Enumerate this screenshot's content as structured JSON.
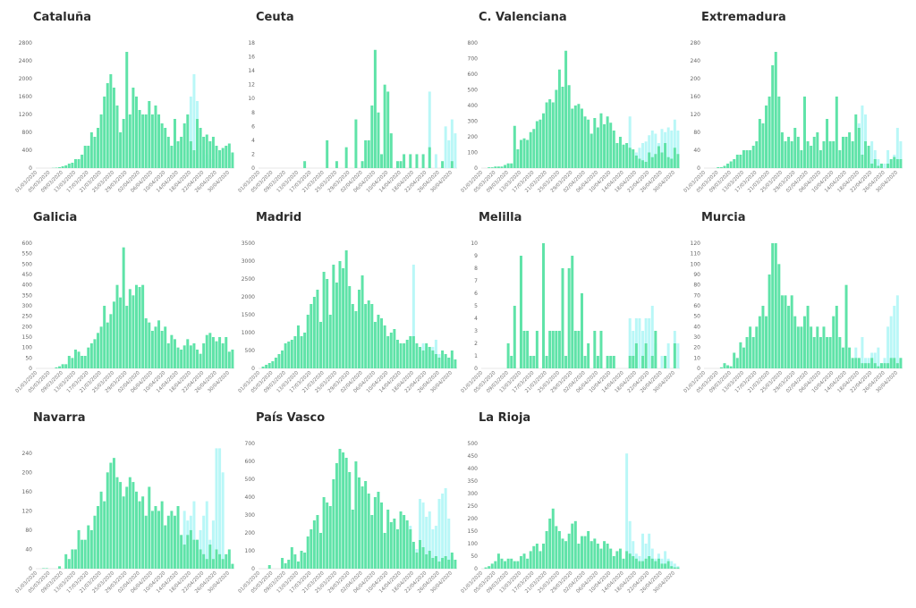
{
  "colors": {
    "confirmed": "#5fe3a8",
    "pending": "#b9f7f7",
    "axis": "#cfcfcf"
  },
  "x_dates": [
    "01/03/2020",
    "05/03/2020",
    "09/03/2020",
    "13/03/2020",
    "17/03/2020",
    "21/03/2020",
    "25/03/2020",
    "29/03/2020",
    "02/04/2020",
    "06/04/2020",
    "10/04/2020",
    "14/04/2020",
    "18/04/2020",
    "22/04/2020",
    "26/04/2020",
    "30/04/2020"
  ],
  "chart_data": [
    {
      "type": "bar",
      "title": "Cataluña",
      "ylim": [
        0,
        2800
      ],
      "yticks": [
        0,
        400,
        800,
        1200,
        1600,
        2000,
        2400,
        2800
      ],
      "confirmed": [
        0,
        0,
        0,
        0,
        0,
        5,
        10,
        20,
        40,
        60,
        100,
        120,
        200,
        200,
        300,
        500,
        500,
        800,
        700,
        900,
        1200,
        1600,
        1900,
        2100,
        1800,
        1400,
        800,
        1100,
        2600,
        1200,
        1800,
        1600,
        1300,
        1200,
        1200,
        1500,
        1200,
        1400,
        1200,
        1000,
        900,
        700,
        500,
        1100,
        600,
        700,
        1000,
        1200,
        600,
        400,
        1100,
        900,
        700,
        750,
        600,
        700,
        500,
        400,
        450,
        500,
        550,
        350
      ],
      "pending": [
        0,
        0,
        0,
        0,
        0,
        0,
        0,
        0,
        0,
        0,
        0,
        0,
        0,
        0,
        0,
        0,
        0,
        0,
        0,
        0,
        0,
        0,
        0,
        0,
        0,
        0,
        0,
        0,
        0,
        0,
        0,
        0,
        0,
        0,
        0,
        0,
        0,
        0,
        0,
        0,
        0,
        0,
        0,
        0,
        0,
        0,
        0,
        0,
        1600,
        2100,
        1500,
        500,
        400,
        300,
        200,
        200,
        150,
        100,
        0,
        0,
        0,
        0
      ]
    },
    {
      "type": "bar",
      "title": "Ceuta",
      "ylim": [
        0,
        18
      ],
      "yticks": [
        0,
        2,
        4,
        6,
        8,
        10,
        12,
        14,
        16,
        18
      ],
      "confirmed": [
        0,
        0,
        0,
        0,
        0,
        0,
        0,
        0,
        0,
        0,
        0,
        0,
        0,
        0,
        1,
        0,
        0,
        0,
        0,
        0,
        0,
        4,
        0,
        0,
        1,
        0,
        0,
        3,
        0,
        0,
        7,
        0,
        1,
        4,
        4,
        9,
        17,
        8,
        2,
        12,
        11,
        5,
        0,
        1,
        1,
        2,
        0,
        2,
        0,
        2,
        0,
        2,
        0,
        3,
        0,
        0,
        0,
        1,
        0,
        0,
        1,
        0
      ],
      "pending": [
        0,
        0,
        0,
        0,
        0,
        0,
        0,
        0,
        0,
        0,
        0,
        0,
        0,
        0,
        0,
        0,
        0,
        0,
        0,
        0,
        0,
        0,
        0,
        0,
        0,
        0,
        0,
        0,
        0,
        0,
        0,
        0,
        0,
        0,
        0,
        0,
        0,
        0,
        0,
        0,
        0,
        0,
        0,
        0,
        0,
        0,
        0,
        0,
        0,
        0,
        0,
        0,
        0,
        11,
        0,
        2,
        0,
        0,
        6,
        4,
        7,
        5
      ]
    },
    {
      "type": "bar",
      "title": "C. Valenciana",
      "ylim": [
        0,
        800
      ],
      "yticks": [
        0,
        100,
        200,
        300,
        400,
        500,
        600,
        700,
        800
      ],
      "confirmed": [
        0,
        0,
        5,
        5,
        10,
        10,
        10,
        20,
        30,
        30,
        270,
        120,
        180,
        190,
        180,
        230,
        250,
        300,
        310,
        350,
        420,
        440,
        420,
        500,
        630,
        520,
        750,
        530,
        380,
        400,
        410,
        380,
        330,
        310,
        220,
        320,
        260,
        350,
        280,
        330,
        290,
        240,
        160,
        200,
        150,
        160,
        130,
        120,
        80,
        60,
        50,
        40,
        100,
        70,
        90,
        140,
        100,
        160,
        70,
        60,
        130,
        90
      ],
      "pending": [
        0,
        0,
        0,
        0,
        0,
        0,
        0,
        0,
        0,
        0,
        0,
        0,
        0,
        0,
        0,
        0,
        0,
        0,
        0,
        0,
        0,
        0,
        0,
        0,
        0,
        0,
        0,
        0,
        0,
        0,
        0,
        0,
        0,
        0,
        0,
        0,
        0,
        0,
        0,
        0,
        0,
        0,
        0,
        0,
        0,
        0,
        330,
        0,
        100,
        130,
        160,
        170,
        210,
        240,
        220,
        160,
        250,
        230,
        260,
        240,
        310,
        240
      ]
    },
    {
      "type": "bar",
      "title": "Extremadura",
      "ylim": [
        0,
        280
      ],
      "yticks": [
        0,
        40,
        80,
        120,
        160,
        200,
        240,
        280
      ],
      "confirmed": [
        0,
        0,
        0,
        0,
        2,
        2,
        5,
        10,
        15,
        20,
        30,
        30,
        40,
        40,
        40,
        50,
        60,
        110,
        100,
        140,
        160,
        230,
        260,
        160,
        80,
        60,
        70,
        60,
        90,
        70,
        40,
        160,
        60,
        50,
        70,
        80,
        40,
        60,
        110,
        60,
        60,
        160,
        40,
        70,
        70,
        80,
        60,
        120,
        90,
        30,
        60,
        50,
        10,
        20,
        5,
        10,
        0,
        10,
        20,
        25,
        20,
        20
      ],
      "pending": [
        0,
        0,
        0,
        0,
        0,
        0,
        0,
        0,
        0,
        0,
        0,
        0,
        0,
        0,
        0,
        0,
        0,
        0,
        0,
        0,
        0,
        0,
        0,
        0,
        0,
        0,
        0,
        0,
        0,
        0,
        0,
        0,
        0,
        0,
        0,
        0,
        0,
        0,
        0,
        0,
        0,
        0,
        0,
        0,
        0,
        0,
        0,
        0,
        100,
        140,
        120,
        40,
        60,
        40,
        20,
        10,
        10,
        40,
        10,
        30,
        90,
        60
      ]
    },
    {
      "type": "bar",
      "title": "Galicia",
      "ylim": [
        0,
        600
      ],
      "yticks": [
        0,
        50,
        100,
        150,
        200,
        250,
        300,
        350,
        400,
        450,
        500,
        550,
        600
      ],
      "confirmed": [
        0,
        0,
        0,
        0,
        0,
        0,
        5,
        10,
        20,
        20,
        60,
        50,
        90,
        80,
        60,
        60,
        100,
        120,
        140,
        170,
        200,
        300,
        220,
        260,
        320,
        400,
        340,
        580,
        300,
        380,
        350,
        400,
        390,
        400,
        240,
        220,
        180,
        200,
        230,
        180,
        200,
        120,
        160,
        140,
        100,
        90,
        110,
        140,
        110,
        120,
        90,
        70,
        120,
        160,
        170,
        150,
        130,
        150,
        120,
        150,
        80,
        90
      ],
      "pending": [
        0,
        0,
        0,
        0,
        0,
        0,
        0,
        0,
        0,
        0,
        0,
        0,
        0,
        0,
        0,
        0,
        0,
        0,
        0,
        0,
        0,
        0,
        0,
        0,
        0,
        0,
        0,
        0,
        0,
        0,
        0,
        0,
        0,
        0,
        0,
        0,
        0,
        0,
        0,
        0,
        0,
        0,
        0,
        0,
        0,
        0,
        0,
        0,
        0,
        0,
        0,
        0,
        0,
        0,
        0,
        0,
        0,
        0,
        0,
        0,
        0,
        0
      ]
    },
    {
      "type": "bar",
      "title": "Madrid",
      "ylim": [
        0,
        3500
      ],
      "yticks": [
        0,
        500,
        1000,
        1500,
        2000,
        2500,
        3000,
        3500
      ],
      "confirmed": [
        0,
        50,
        100,
        150,
        200,
        300,
        400,
        500,
        700,
        750,
        800,
        900,
        1200,
        900,
        1000,
        1500,
        1800,
        2000,
        2200,
        1300,
        2700,
        2500,
        1500,
        2900,
        2400,
        3000,
        2800,
        3300,
        2300,
        1800,
        1600,
        2200,
        2600,
        1800,
        1900,
        1800,
        1300,
        1500,
        1400,
        1200,
        900,
        1000,
        1100,
        800,
        700,
        700,
        800,
        900,
        900,
        700,
        600,
        500,
        700,
        600,
        500,
        400,
        300,
        500,
        400,
        300,
        500,
        250
      ],
      "pending": [
        0,
        0,
        0,
        0,
        0,
        0,
        0,
        0,
        0,
        0,
        0,
        0,
        0,
        0,
        0,
        0,
        0,
        0,
        0,
        0,
        0,
        0,
        0,
        0,
        0,
        0,
        0,
        0,
        0,
        0,
        0,
        0,
        0,
        0,
        0,
        0,
        0,
        0,
        0,
        0,
        0,
        0,
        0,
        0,
        0,
        0,
        0,
        0,
        2900,
        500,
        300,
        700,
        600,
        500,
        600,
        800,
        400,
        300,
        200,
        300,
        100,
        50
      ]
    },
    {
      "type": "bar",
      "title": "Melilla",
      "ylim": [
        0,
        10
      ],
      "yticks": [
        0,
        1,
        2,
        3,
        4,
        5,
        6,
        7,
        8,
        9,
        10
      ],
      "confirmed": [
        0,
        0,
        0,
        0,
        0,
        0,
        0,
        0,
        2,
        1,
        5,
        0,
        9,
        3,
        3,
        1,
        1,
        3,
        0,
        10,
        1,
        3,
        3,
        3,
        3,
        8,
        1,
        8,
        9,
        3,
        3,
        6,
        1,
        2,
        0,
        3,
        1,
        3,
        0,
        1,
        1,
        1,
        0,
        0,
        0,
        0,
        1,
        1,
        2,
        0,
        1,
        2,
        0,
        1,
        3,
        0,
        0,
        1,
        0,
        0,
        2,
        0
      ],
      "pending": [
        0,
        0,
        0,
        0,
        0,
        0,
        0,
        0,
        0,
        0,
        0,
        0,
        0,
        0,
        0,
        0,
        0,
        0,
        0,
        0,
        0,
        0,
        0,
        0,
        0,
        0,
        0,
        0,
        0,
        0,
        0,
        0,
        0,
        0,
        0,
        0,
        0,
        0,
        0,
        0,
        0,
        0,
        0,
        0,
        0,
        0,
        4,
        3,
        4,
        4,
        3,
        4,
        4,
        5,
        2,
        0,
        1,
        0,
        2,
        0,
        3,
        2
      ]
    },
    {
      "type": "bar",
      "title": "Murcia",
      "ylim": [
        0,
        120
      ],
      "yticks": [
        0,
        10,
        20,
        30,
        40,
        50,
        60,
        70,
        80,
        90,
        100,
        110,
        120
      ],
      "confirmed": [
        0,
        0,
        0,
        0,
        0,
        1,
        5,
        3,
        2,
        15,
        10,
        25,
        20,
        30,
        40,
        30,
        40,
        50,
        60,
        50,
        90,
        120,
        120,
        100,
        70,
        70,
        60,
        70,
        50,
        40,
        40,
        50,
        60,
        40,
        30,
        40,
        30,
        40,
        30,
        30,
        50,
        60,
        30,
        20,
        80,
        20,
        10,
        10,
        10,
        5,
        5,
        5,
        10,
        5,
        2,
        5,
        5,
        5,
        10,
        10,
        5,
        10
      ],
      "pending": [
        0,
        0,
        0,
        0,
        0,
        0,
        0,
        0,
        0,
        0,
        0,
        0,
        0,
        0,
        0,
        0,
        0,
        0,
        0,
        0,
        0,
        0,
        0,
        0,
        0,
        0,
        0,
        0,
        0,
        0,
        0,
        0,
        0,
        0,
        0,
        0,
        0,
        0,
        0,
        0,
        0,
        0,
        0,
        0,
        0,
        0,
        0,
        20,
        5,
        30,
        10,
        10,
        15,
        15,
        20,
        5,
        10,
        40,
        50,
        60,
        70,
        10
      ]
    },
    {
      "type": "bar",
      "title": "Navarra",
      "ylim": [
        0,
        260
      ],
      "yticks": [
        0,
        40,
        80,
        120,
        160,
        200,
        240
      ],
      "confirmed": [
        0,
        0,
        1,
        1,
        0,
        0,
        0,
        5,
        0,
        30,
        20,
        40,
        40,
        80,
        60,
        60,
        90,
        80,
        110,
        130,
        160,
        140,
        200,
        220,
        230,
        190,
        180,
        150,
        170,
        190,
        180,
        160,
        140,
        150,
        110,
        170,
        120,
        130,
        120,
        140,
        90,
        110,
        120,
        110,
        130,
        70,
        50,
        70,
        80,
        60,
        60,
        40,
        30,
        20,
        50,
        20,
        40,
        30,
        20,
        30,
        40,
        10
      ],
      "pending": [
        0,
        0,
        0,
        0,
        0,
        0,
        0,
        0,
        0,
        0,
        0,
        0,
        0,
        0,
        0,
        0,
        0,
        0,
        0,
        0,
        0,
        0,
        0,
        0,
        0,
        0,
        0,
        0,
        0,
        0,
        0,
        0,
        0,
        0,
        0,
        0,
        0,
        0,
        0,
        0,
        0,
        0,
        0,
        0,
        0,
        0,
        120,
        100,
        110,
        140,
        60,
        80,
        110,
        140,
        60,
        100,
        250,
        250,
        200,
        0,
        0,
        0
      ]
    },
    {
      "type": "bar",
      "title": "País Vasco",
      "ylim": [
        0,
        700
      ],
      "yticks": [
        0,
        100,
        200,
        300,
        400,
        500,
        600,
        700
      ],
      "confirmed": [
        0,
        0,
        0,
        20,
        0,
        0,
        0,
        60,
        30,
        50,
        120,
        80,
        40,
        100,
        90,
        180,
        220,
        270,
        300,
        200,
        400,
        370,
        350,
        500,
        590,
        670,
        650,
        620,
        540,
        330,
        600,
        510,
        460,
        490,
        420,
        300,
        400,
        430,
        370,
        200,
        330,
        260,
        280,
        220,
        320,
        300,
        270,
        220,
        150,
        90,
        160,
        120,
        80,
        100,
        60,
        70,
        40,
        60,
        70,
        50,
        90,
        50
      ],
      "pending": [
        0,
        0,
        0,
        0,
        0,
        0,
        0,
        0,
        0,
        0,
        0,
        0,
        0,
        0,
        0,
        0,
        0,
        0,
        0,
        0,
        0,
        0,
        0,
        0,
        0,
        0,
        0,
        0,
        0,
        0,
        0,
        0,
        0,
        0,
        0,
        0,
        0,
        0,
        0,
        0,
        0,
        0,
        0,
        0,
        0,
        300,
        0,
        240,
        130,
        110,
        390,
        370,
        290,
        320,
        220,
        240,
        390,
        420,
        450,
        280,
        70,
        0
      ]
    },
    {
      "type": "bar",
      "title": "La Rioja",
      "ylim": [
        0,
        500
      ],
      "yticks": [
        0,
        50,
        100,
        150,
        200,
        250,
        300,
        350,
        400,
        450,
        500
      ],
      "confirmed": [
        0,
        5,
        10,
        20,
        30,
        60,
        40,
        30,
        40,
        40,
        30,
        30,
        50,
        60,
        40,
        70,
        90,
        100,
        70,
        100,
        150,
        200,
        240,
        170,
        150,
        120,
        110,
        140,
        180,
        190,
        100,
        130,
        130,
        150,
        110,
        120,
        100,
        80,
        110,
        100,
        80,
        50,
        70,
        80,
        40,
        70,
        60,
        50,
        40,
        30,
        30,
        40,
        50,
        40,
        30,
        40,
        20,
        20,
        30,
        10,
        5,
        5
      ],
      "pending": [
        0,
        0,
        0,
        0,
        0,
        0,
        0,
        0,
        0,
        0,
        0,
        0,
        0,
        0,
        0,
        0,
        0,
        0,
        0,
        0,
        0,
        0,
        0,
        0,
        0,
        0,
        0,
        0,
        0,
        0,
        0,
        0,
        0,
        0,
        0,
        0,
        0,
        0,
        0,
        0,
        0,
        0,
        0,
        0,
        0,
        460,
        190,
        110,
        60,
        50,
        140,
        100,
        140,
        80,
        40,
        60,
        40,
        70,
        40,
        30,
        20,
        10
      ]
    }
  ]
}
